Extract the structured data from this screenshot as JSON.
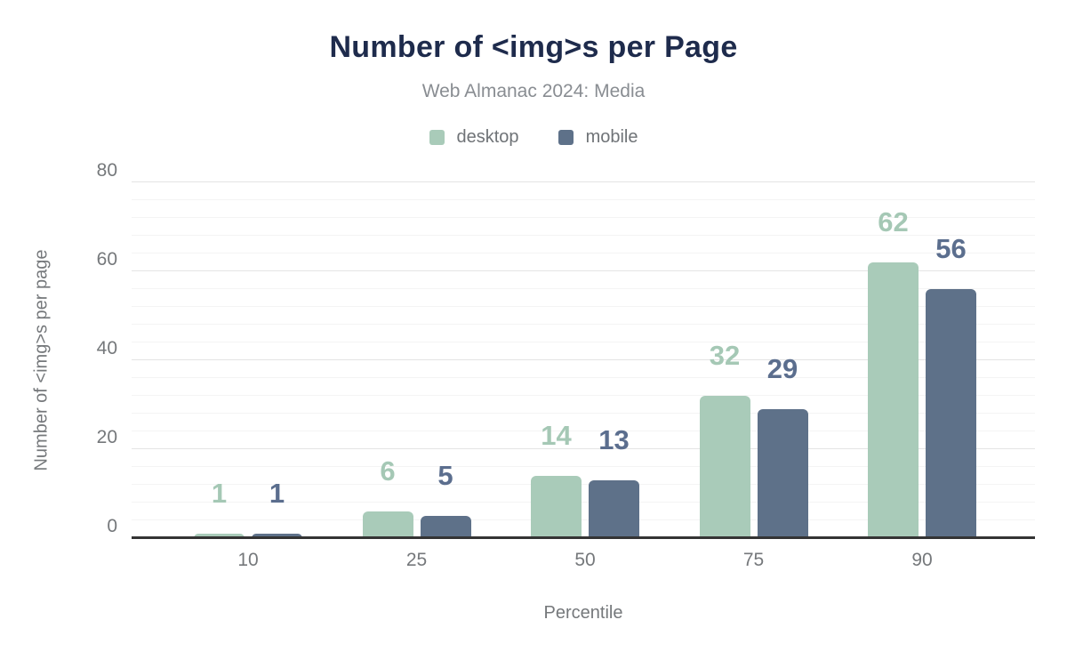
{
  "chart": {
    "title": "Number of <img>s per Page",
    "subtitle": "Web Almanac 2024: Media"
  },
  "chart_data": {
    "type": "bar",
    "categories": [
      "10",
      "25",
      "50",
      "75",
      "90"
    ],
    "series": [
      {
        "name": "desktop",
        "color": "#a9cbb9",
        "label_color": "#a5c8b5",
        "values": [
          1,
          6,
          14,
          32,
          62
        ]
      },
      {
        "name": "mobile",
        "color": "#5e7189",
        "label_color": "#5b6e8e",
        "values": [
          1,
          5,
          13,
          29,
          56
        ]
      }
    ],
    "title": "Number of <img>s per Page",
    "subtitle": "Web Almanac 2024: Media",
    "xlabel": "Percentile",
    "ylabel": "Number of <img>s per page",
    "ylim": [
      0,
      80
    ],
    "y_major_ticks": [
      0,
      20,
      40,
      60,
      80
    ],
    "y_minor_interval": 4,
    "grid": "horizontal",
    "legend_position": "top",
    "data_labels": true
  },
  "colors": {
    "title": "#1e2b4c",
    "subtitle": "#898d92",
    "axis_text": "#75787b",
    "legend_text": "#6f7377",
    "axis_line": "#343434",
    "grid_major": "#e4e4e4",
    "grid_minor": "#f4f4f4",
    "background": "#ffffff"
  }
}
